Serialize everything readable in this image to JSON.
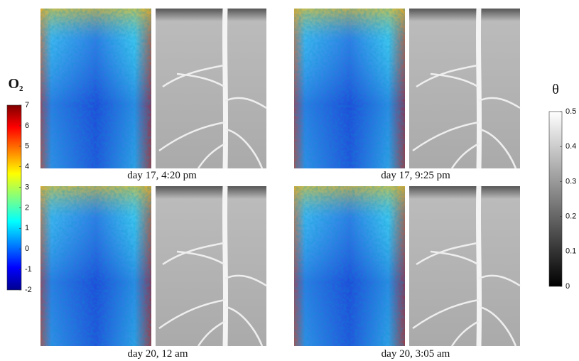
{
  "panels": [
    {
      "caption": "day 17, 4:20 pm"
    },
    {
      "caption": "day 17, 9:25 pm"
    },
    {
      "caption": "day 20, 12 am"
    },
    {
      "caption": "day 20, 3:05 am"
    }
  ],
  "colorbars": [
    {
      "label": "O",
      "subscript": "2",
      "lim": [
        -2,
        7
      ],
      "ticks": [
        -2,
        -1,
        0,
        1,
        2,
        3,
        4,
        5,
        6,
        7
      ]
    },
    {
      "label": "θ",
      "lim": [
        0,
        0.5
      ],
      "ticks": [
        0,
        0.1,
        0.2,
        0.3,
        0.4,
        0.5
      ]
    }
  ]
}
